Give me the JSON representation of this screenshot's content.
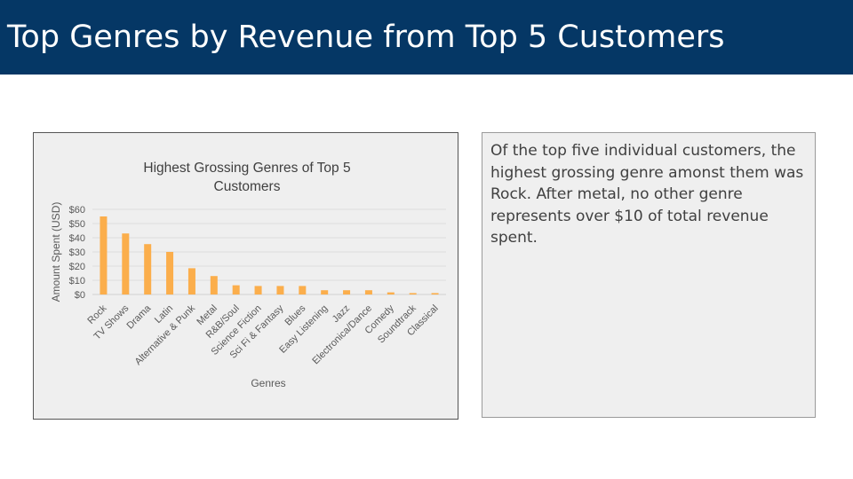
{
  "slide": {
    "title": "Top Genres by Revenue from Top 5 Customers",
    "description": "Of the top five individual customers, the highest grossing genre amonst them was Rock. After metal, no other genre represents over $10 of total revenue spent."
  },
  "colors": {
    "header_bg": "#053765",
    "bar": "#FBAE4C",
    "panel_bg": "#EFEFEF"
  },
  "chart_data": {
    "type": "bar",
    "title_lines": [
      "Highest Grossing Genres of Top 5",
      "Customers"
    ],
    "xlabel": "Genres",
    "ylabel": "Amount Spent (USD)",
    "ylim": [
      0,
      60
    ],
    "yticks": [
      0,
      10,
      20,
      30,
      40,
      50,
      60
    ],
    "ytick_labels": [
      "$0",
      "$10",
      "$20",
      "$30",
      "$40",
      "$50",
      "$60"
    ],
    "grid": true,
    "legend": "none",
    "categories": [
      "Rock",
      "TV Shows",
      "Drama",
      "Latin",
      "Alternative & Punk",
      "Metal",
      "R&B/Soul",
      "Science Fiction",
      "Sci Fi & Fantasy",
      "Blues",
      "Easy Listening",
      "Jazz",
      "Electronica/Dance",
      "Comedy",
      "Soundtrack",
      "Classical"
    ],
    "values": [
      55,
      43,
      35.5,
      30,
      18.5,
      13,
      6.5,
      6,
      6,
      6,
      3,
      3,
      3,
      1.5,
      1,
      1
    ]
  }
}
